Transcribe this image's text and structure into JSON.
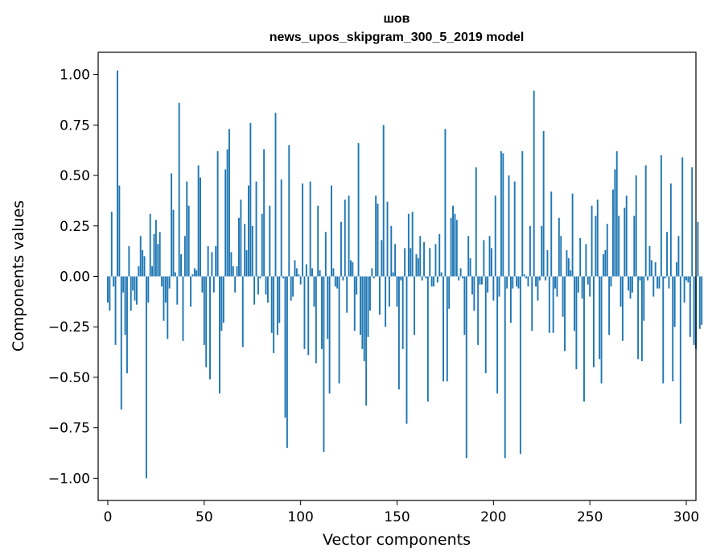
{
  "chart_data": {
    "type": "bar",
    "title": "шов",
    "subtitle": "news_upos_skipgram_300_5_2019 model",
    "xlabel": "Vector components",
    "ylabel": "Components values",
    "xlim": [
      -5,
      305
    ],
    "ylim": [
      -1.11,
      1.11
    ],
    "xticks": [
      0,
      50,
      100,
      150,
      200,
      250,
      300
    ],
    "xtick_labels": [
      "0",
      "50",
      "100",
      "150",
      "200",
      "250",
      "300"
    ],
    "yticks": [
      1.0,
      0.75,
      0.5,
      0.25,
      0.0,
      -0.25,
      -0.5,
      -0.75,
      -1.0
    ],
    "ytick_labels": [
      "1.00",
      "0.75",
      "0.50",
      "0.25",
      "0.00",
      "−0.25",
      "−0.50",
      "−0.75",
      "−1.00"
    ],
    "bar_color": "#1f77b4",
    "grid": false,
    "values": [
      -0.13,
      -0.17,
      0.32,
      -0.05,
      -0.34,
      1.02,
      0.45,
      -0.66,
      -0.08,
      -0.29,
      -0.48,
      0.15,
      -0.17,
      -0.07,
      -0.12,
      -0.14,
      0.05,
      0.2,
      0.13,
      0.1,
      -1.0,
      -0.13,
      0.31,
      0.05,
      0.21,
      0.28,
      0.16,
      0.22,
      -0.05,
      -0.22,
      -0.13,
      -0.31,
      -0.06,
      0.51,
      0.33,
      0.02,
      -0.14,
      0.86,
      0.11,
      -0.32,
      0.2,
      0.47,
      0.35,
      -0.15,
      0.01,
      0.04,
      0.03,
      0.55,
      0.49,
      -0.08,
      -0.34,
      -0.45,
      0.15,
      -0.51,
      0.12,
      -0.08,
      0.15,
      0.62,
      -0.58,
      -0.27,
      -0.23,
      0.53,
      0.63,
      0.73,
      0.12,
      0.05,
      -0.08,
      0.05,
      0.29,
      0.38,
      -0.35,
      0.26,
      0.13,
      0.45,
      0.76,
      0.25,
      -0.14,
      0.47,
      -0.09,
      -0.01,
      0.31,
      0.63,
      -0.09,
      -0.13,
      0.35,
      -0.28,
      -0.38,
      0.81,
      -0.29,
      -0.23,
      0.48,
      -0.01,
      -0.7,
      -0.85,
      0.65,
      -0.12,
      -0.1,
      0.08,
      0.04,
      0.01,
      -0.04,
      0.46,
      -0.36,
      0.06,
      -0.39,
      0.47,
      0.04,
      -0.15,
      -0.43,
      0.35,
      0.03,
      -0.36,
      -0.87,
      0.22,
      -0.31,
      -0.58,
      0.45,
      0.04,
      -0.05,
      -0.06,
      -0.53,
      0.27,
      -0.02,
      0.38,
      -0.18,
      0.4,
      0.08,
      0.07,
      -0.27,
      -0.09,
      0.66,
      -0.29,
      -0.36,
      -0.42,
      -0.64,
      -0.3,
      -0.17,
      0.04,
      -0.01,
      0.4,
      0.36,
      -0.19,
      0.18,
      0.75,
      -0.25,
      0.37,
      -0.15,
      0.25,
      0.02,
      0.16,
      -0.15,
      -0.56,
      -0.02,
      -0.36,
      0.14,
      -0.73,
      0.31,
      0.14,
      0.32,
      -0.29,
      0.11,
      0.09,
      0.2,
      -0.02,
      0.17,
      -0.01,
      -0.62,
      0.14,
      -0.05,
      -0.05,
      0.16,
      -0.03,
      0.21,
      0.02,
      -0.52,
      0.73,
      -0.52,
      -0.16,
      0.29,
      0.35,
      0.31,
      0.28,
      -0.02,
      0.04,
      -0.01,
      -0.29,
      -0.9,
      0.2,
      0.09,
      -0.09,
      -0.17,
      0.54,
      -0.34,
      -0.04,
      -0.04,
      0.18,
      -0.48,
      -0.08,
      0.2,
      0.14,
      -0.12,
      0.4,
      -0.58,
      -0.1,
      0.62,
      0.61,
      -0.9,
      -0.06,
      0.5,
      -0.23,
      -0.06,
      0.47,
      -0.05,
      -0.06,
      -0.88,
      0.62,
      0.01,
      -0.01,
      -0.05,
      0.25,
      -0.27,
      0.92,
      -0.05,
      -0.12,
      -0.02,
      0.25,
      0.72,
      -0.02,
      0.13,
      -0.28,
      0.42,
      -0.28,
      -0.06,
      -0.1,
      0.29,
      0.2,
      -0.2,
      -0.37,
      0.13,
      0.09,
      0.03,
      0.41,
      -0.27,
      -0.46,
      -0.08,
      0.19,
      -0.11,
      -0.62,
      0.16,
      -0.04,
      -0.1,
      0.35,
      -0.45,
      0.3,
      0.38,
      -0.41,
      -0.53,
      0.11,
      0.13,
      0.26,
      -0.29,
      -0.05,
      0.43,
      0.53,
      0.62,
      0.3,
      -0.15,
      -0.32,
      0.34,
      0.4,
      -0.07,
      -0.11,
      -0.08,
      0.3,
      0.5,
      -0.41,
      -0.02,
      -0.42,
      -0.22,
      0.55,
      -0.02,
      0.15,
      0.08,
      -0.1,
      0.07,
      -0.06,
      -0.06,
      0.6,
      -0.53,
      -0.01,
      0.22,
      -0.06,
      0.46,
      -0.52,
      -0.25,
      0.07,
      0.2,
      -0.73,
      0.59,
      -0.13,
      -0.02,
      -0.03,
      -0.3,
      0.54,
      -0.34,
      -0.36,
      0.27,
      -0.26,
      -0.24
    ]
  }
}
